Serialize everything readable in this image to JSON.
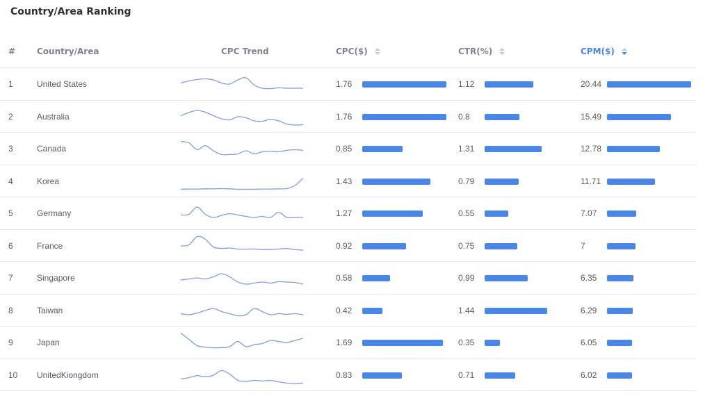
{
  "title": "Country/Area Ranking",
  "columns": {
    "rank": "#",
    "country": "Country/Area",
    "trend": "CPC Trend",
    "cpc": "CPC($)",
    "ctr": "CTR(%)",
    "cpm": "CPM($)"
  },
  "sort": {
    "active_column": "cpm",
    "direction": "desc"
  },
  "colors": {
    "bar": "#4a86e8",
    "spark": "#7f9ee0",
    "active_header": "#4a86e8"
  },
  "rows": [
    {
      "rank": "1",
      "country": "United States",
      "cpc": "1.76",
      "ctr": "1.12",
      "cpm": "20.44",
      "trend": [
        0.55,
        0.65,
        0.72,
        0.75,
        0.7,
        0.55,
        0.5,
        0.7,
        0.8,
        0.45,
        0.3,
        0.28,
        0.32,
        0.3,
        0.3,
        0.3
      ]
    },
    {
      "rank": "2",
      "country": "Australia",
      "cpc": "1.76",
      "ctr": "0.8",
      "cpm": "15.49",
      "trend": [
        0.55,
        0.7,
        0.8,
        0.72,
        0.55,
        0.4,
        0.35,
        0.5,
        0.45,
        0.3,
        0.28,
        0.38,
        0.3,
        0.15,
        0.1,
        0.12
      ]
    },
    {
      "rank": "3",
      "country": "Canada",
      "cpc": "0.85",
      "ctr": "1.31",
      "cpm": "12.78",
      "trend": [
        0.85,
        0.78,
        0.45,
        0.65,
        0.4,
        0.22,
        0.22,
        0.25,
        0.4,
        0.25,
        0.35,
        0.38,
        0.35,
        0.42,
        0.45,
        0.42
      ]
    },
    {
      "rank": "4",
      "country": "Korea",
      "cpc": "1.43",
      "ctr": "0.79",
      "cpm": "11.71",
      "trend": [
        0.12,
        0.13,
        0.13,
        0.14,
        0.14,
        0.15,
        0.14,
        0.12,
        0.12,
        0.12,
        0.13,
        0.13,
        0.14,
        0.15,
        0.3,
        0.65
      ]
    },
    {
      "rank": "5",
      "country": "Germany",
      "cpc": "1.27",
      "ctr": "0.55",
      "cpm": "7.07",
      "trend": [
        0.42,
        0.45,
        0.8,
        0.45,
        0.3,
        0.4,
        0.48,
        0.42,
        0.35,
        0.3,
        0.35,
        0.3,
        0.55,
        0.3,
        0.3,
        0.3
      ]
    },
    {
      "rank": "6",
      "country": "France",
      "cpc": "0.92",
      "ctr": "0.75",
      "cpm": "7",
      "trend": [
        0.5,
        0.55,
        0.95,
        0.82,
        0.45,
        0.38,
        0.4,
        0.35,
        0.35,
        0.35,
        0.33,
        0.33,
        0.35,
        0.38,
        0.32,
        0.3
      ]
    },
    {
      "rank": "7",
      "country": "Singapore",
      "cpc": "0.58",
      "ctr": "0.99",
      "cpm": "6.35",
      "trend": [
        0.4,
        0.45,
        0.5,
        0.45,
        0.55,
        0.7,
        0.55,
        0.3,
        0.2,
        0.25,
        0.3,
        0.25,
        0.32,
        0.3,
        0.28,
        0.2
      ]
    },
    {
      "rank": "8",
      "country": "Taiwan",
      "cpc": "0.42",
      "ctr": "1.44",
      "cpm": "6.29",
      "trend": [
        0.35,
        0.3,
        0.38,
        0.5,
        0.6,
        0.45,
        0.35,
        0.25,
        0.3,
        0.6,
        0.45,
        0.3,
        0.35,
        0.32,
        0.35,
        0.3
      ]
    },
    {
      "rank": "9",
      "country": "Japan",
      "cpc": "1.69",
      "ctr": "0.35",
      "cpm": "6.05",
      "trend": [
        0.95,
        0.65,
        0.35,
        0.28,
        0.25,
        0.25,
        0.3,
        0.55,
        0.3,
        0.4,
        0.45,
        0.6,
        0.55,
        0.5,
        0.6,
        0.7
      ]
    },
    {
      "rank": "10",
      "country": "UnitedKiongdom",
      "cpc": "0.83",
      "ctr": "0.71",
      "cpm": "6.02",
      "trend": [
        0.32,
        0.38,
        0.48,
        0.42,
        0.5,
        0.72,
        0.55,
        0.25,
        0.2,
        0.25,
        0.22,
        0.25,
        0.18,
        0.12,
        0.1,
        0.12
      ]
    }
  ]
}
